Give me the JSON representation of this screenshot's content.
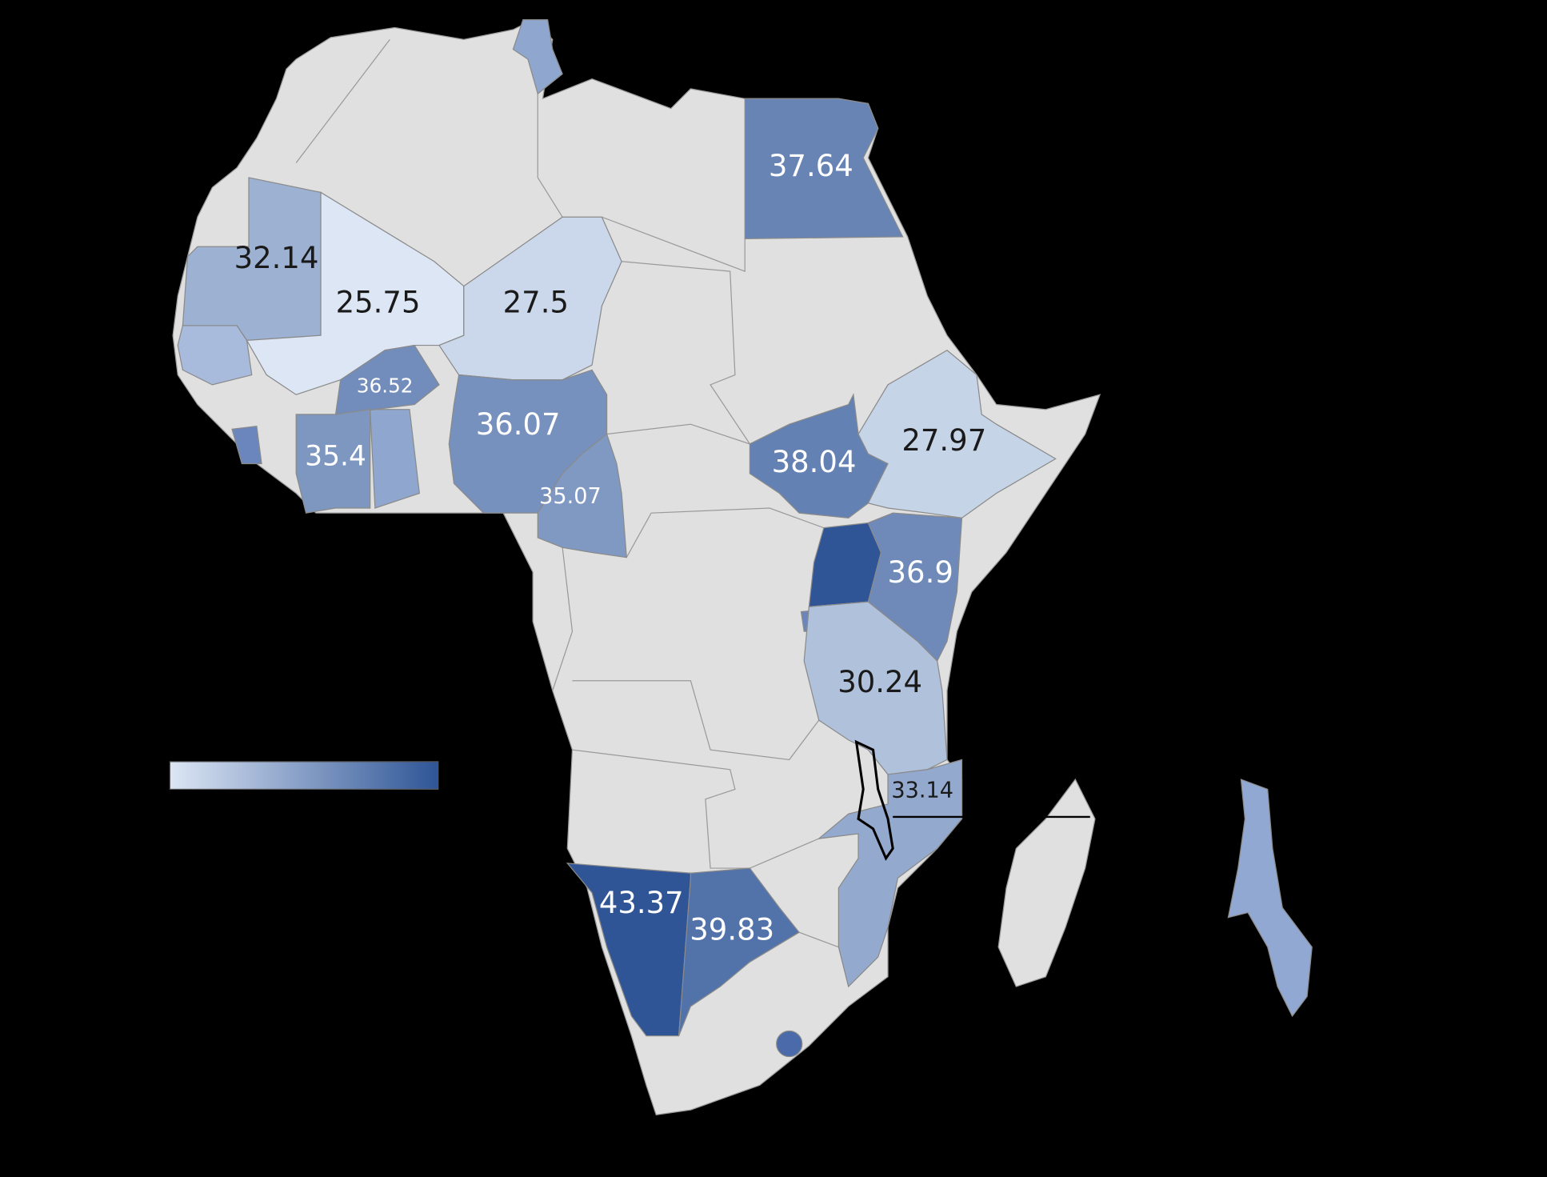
{
  "map": {
    "type": "choropleth",
    "color_scale": [
      "#dce6f4",
      "#2f5597"
    ],
    "regions": [
      {
        "value": 37.64
      },
      {
        "value": 32.14
      },
      {
        "value": 25.75
      },
      {
        "value": 27.5
      },
      {
        "value": 36.52
      },
      {
        "value": 35.4
      },
      {
        "value": 36.07
      },
      {
        "value": 35.07
      },
      {
        "value": 38.04
      },
      {
        "value": 27.97
      },
      {
        "value": 36.9
      },
      {
        "value": 30.24
      },
      {
        "value": 33.14
      },
      {
        "value": 43.37
      },
      {
        "value": 39.83
      }
    ]
  }
}
